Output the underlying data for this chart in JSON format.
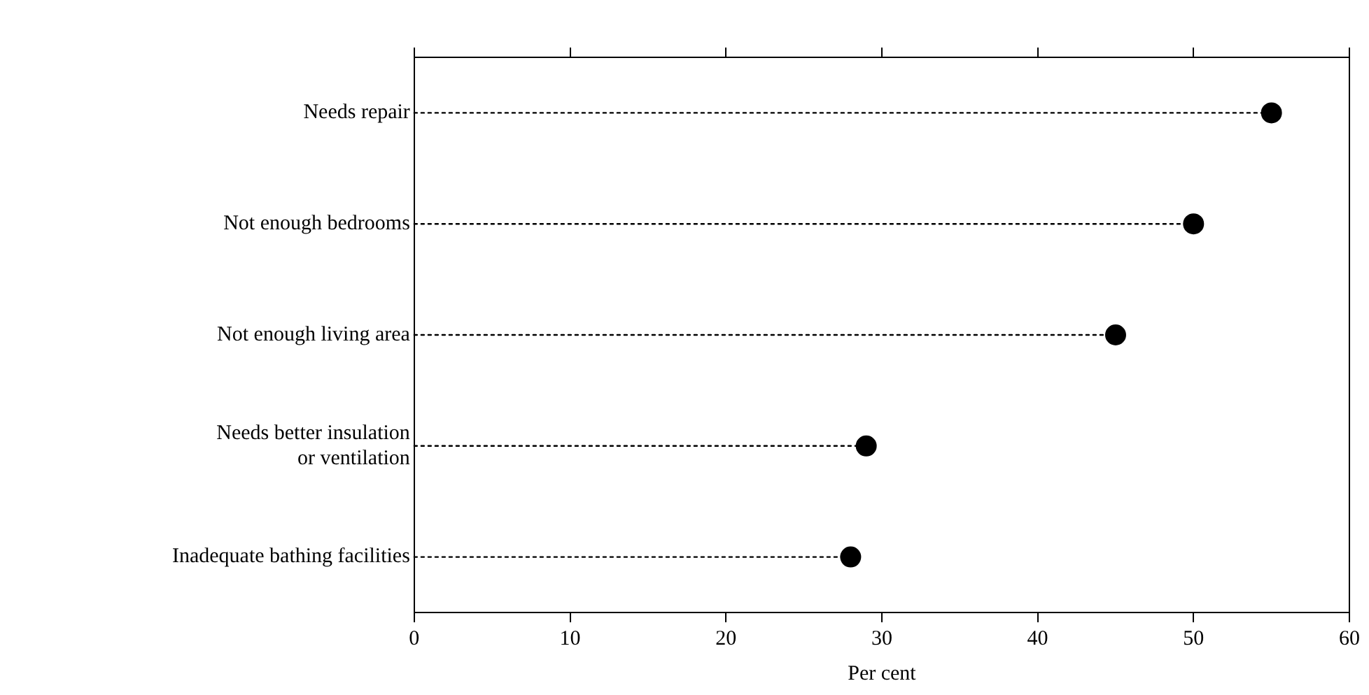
{
  "chart_data": {
    "type": "lollipop",
    "orientation": "horizontal",
    "xlabel": "Per cent",
    "categories": [
      "Needs repair",
      "Not enough bedrooms",
      "Not enough living area",
      "Needs better insulation\nor ventilation",
      "Inadequate bathing facilities"
    ],
    "values": [
      55,
      50,
      45,
      29,
      28
    ],
    "color": "#000000",
    "marker": "circle",
    "line_style": "dotted",
    "xlim": [
      0,
      60
    ],
    "xticks": [
      0,
      10,
      20,
      30,
      40,
      50,
      60
    ],
    "grid": false,
    "legend": false
  }
}
